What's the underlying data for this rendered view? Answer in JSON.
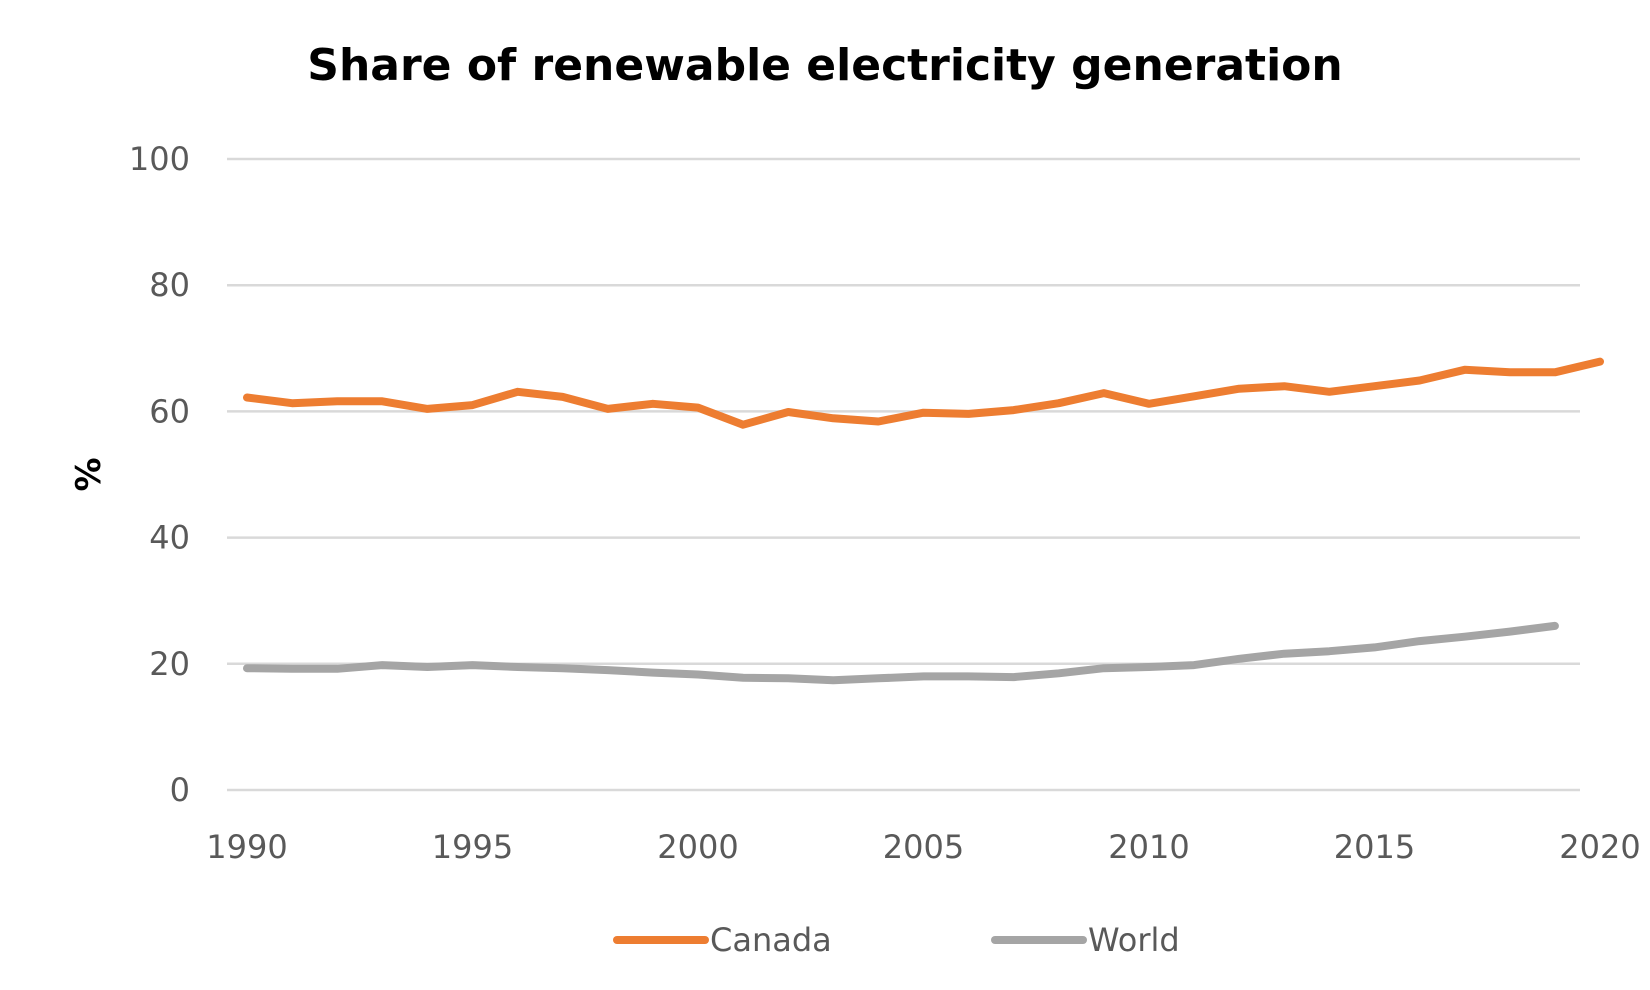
{
  "chart_data": {
    "type": "line",
    "title": "Share of renewable electricity generation",
    "xlabel": "",
    "ylabel": "%",
    "xlim": [
      1990,
      2020
    ],
    "ylim": [
      0,
      100
    ],
    "x_ticks": [
      1990,
      1995,
      2000,
      2005,
      2010,
      2015,
      2020
    ],
    "y_ticks": [
      0,
      20,
      40,
      60,
      80,
      100
    ],
    "grid": "horizontal",
    "legend_position": "bottom",
    "series": [
      {
        "name": "Canada",
        "color": "#ED7D31",
        "x": [
          1990,
          1991,
          1992,
          1993,
          1994,
          1995,
          1996,
          1997,
          1998,
          1999,
          2000,
          2001,
          2002,
          2003,
          2004,
          2005,
          2006,
          2007,
          2008,
          2009,
          2010,
          2011,
          2012,
          2013,
          2014,
          2015,
          2016,
          2017,
          2018,
          2019,
          2020
        ],
        "values": [
          62.2,
          61.3,
          61.6,
          61.6,
          60.4,
          61.0,
          63.1,
          62.3,
          60.4,
          61.2,
          60.6,
          57.9,
          59.9,
          58.9,
          58.4,
          59.8,
          59.6,
          60.2,
          61.3,
          62.9,
          61.2,
          62.4,
          63.6,
          64.0,
          63.1,
          64.0,
          64.9,
          66.6,
          66.2,
          66.2,
          67.9
        ]
      },
      {
        "name": "World",
        "color": "#A5A5A5",
        "x": [
          1990,
          1991,
          1992,
          1993,
          1994,
          1995,
          1996,
          1997,
          1998,
          1999,
          2000,
          2001,
          2002,
          2003,
          2004,
          2005,
          2006,
          2007,
          2008,
          2009,
          2010,
          2011,
          2012,
          2013,
          2014,
          2015,
          2016,
          2017,
          2018,
          2019
        ],
        "values": [
          19.3,
          19.2,
          19.2,
          19.8,
          19.5,
          19.8,
          19.5,
          19.3,
          19.0,
          18.6,
          18.3,
          17.8,
          17.7,
          17.4,
          17.7,
          18.0,
          18.0,
          17.9,
          18.5,
          19.3,
          19.5,
          19.8,
          20.8,
          21.6,
          22.0,
          22.6,
          23.6,
          24.3,
          25.1,
          26.0
        ]
      }
    ]
  }
}
